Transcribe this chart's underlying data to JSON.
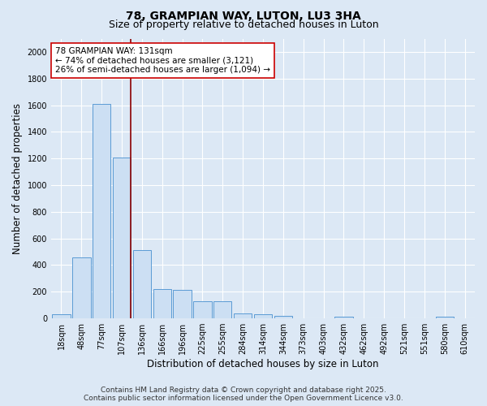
{
  "title": "78, GRAMPIAN WAY, LUTON, LU3 3HA",
  "subtitle": "Size of property relative to detached houses in Luton",
  "xlabel": "Distribution of detached houses by size in Luton",
  "ylabel": "Number of detached properties",
  "categories": [
    "18sqm",
    "48sqm",
    "77sqm",
    "107sqm",
    "136sqm",
    "166sqm",
    "196sqm",
    "225sqm",
    "255sqm",
    "284sqm",
    "314sqm",
    "344sqm",
    "373sqm",
    "403sqm",
    "432sqm",
    "462sqm",
    "492sqm",
    "521sqm",
    "551sqm",
    "580sqm",
    "610sqm"
  ],
  "values": [
    30,
    460,
    1610,
    1210,
    510,
    220,
    215,
    130,
    130,
    40,
    30,
    20,
    0,
    0,
    15,
    0,
    0,
    0,
    0,
    10,
    0
  ],
  "bar_color": "#ccdff3",
  "bar_edge_color": "#5b9bd5",
  "vline_x_index": 3,
  "vline_color": "#8b0000",
  "annotation_text_line1": "78 GRAMPIAN WAY: 131sqm",
  "annotation_text_line2": "← 74% of detached houses are smaller (3,121)",
  "annotation_text_line3": "26% of semi-detached houses are larger (1,094) →",
  "annotation_box_facecolor": "#ffffff",
  "annotation_box_edgecolor": "#cc0000",
  "ylim": [
    0,
    2100
  ],
  "yticks": [
    0,
    200,
    400,
    600,
    800,
    1000,
    1200,
    1400,
    1600,
    1800,
    2000
  ],
  "bg_color": "#dce8f5",
  "plot_bg_color": "#dce8f5",
  "grid_color": "#ffffff",
  "footer_line1": "Contains HM Land Registry data © Crown copyright and database right 2025.",
  "footer_line2": "Contains public sector information licensed under the Open Government Licence v3.0.",
  "title_fontsize": 10,
  "subtitle_fontsize": 9,
  "axis_label_fontsize": 8.5,
  "tick_fontsize": 7,
  "annotation_fontsize": 7.5,
  "footer_fontsize": 6.5
}
